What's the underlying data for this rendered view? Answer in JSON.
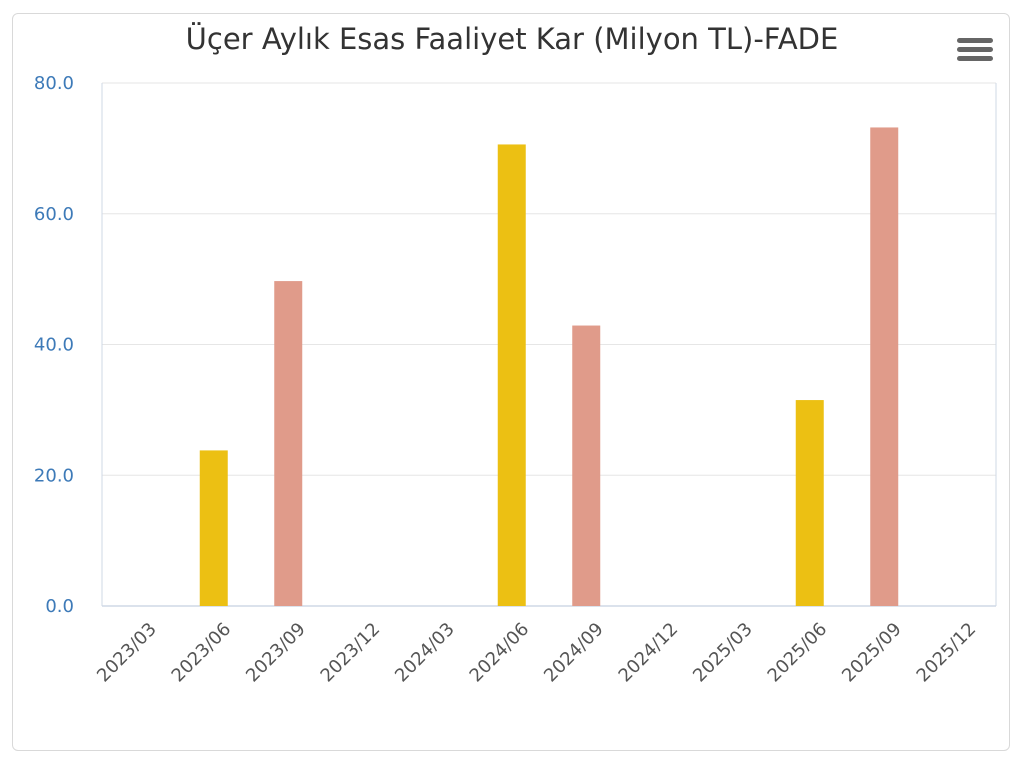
{
  "chart_data": {
    "type": "bar",
    "title": "Üçer Aylık Esas Faaliyet Kar (Milyon TL)-FADE",
    "categories": [
      "2023/03",
      "2023/06",
      "2023/09",
      "2023/12",
      "2024/03",
      "2024/06",
      "2024/09",
      "2024/12",
      "2025/03",
      "2025/06",
      "2025/09",
      "2025/12"
    ],
    "values": [
      null,
      23.8,
      49.7,
      null,
      null,
      70.6,
      42.9,
      null,
      null,
      31.5,
      73.2,
      null
    ],
    "ylim": [
      0,
      80
    ],
    "yticks": [
      "0.0",
      "20.0",
      "40.0",
      "60.0",
      "80.0"
    ],
    "grid": true,
    "colors": {
      "q2_bars": "#ecc013",
      "q3_bars": "#e09b8a",
      "gridline": "#e6e6e6",
      "y_tick_text": "#3d7ab8",
      "x_tick_text": "#555555"
    }
  },
  "menu": {
    "icon": "hamburger-menu-icon"
  }
}
